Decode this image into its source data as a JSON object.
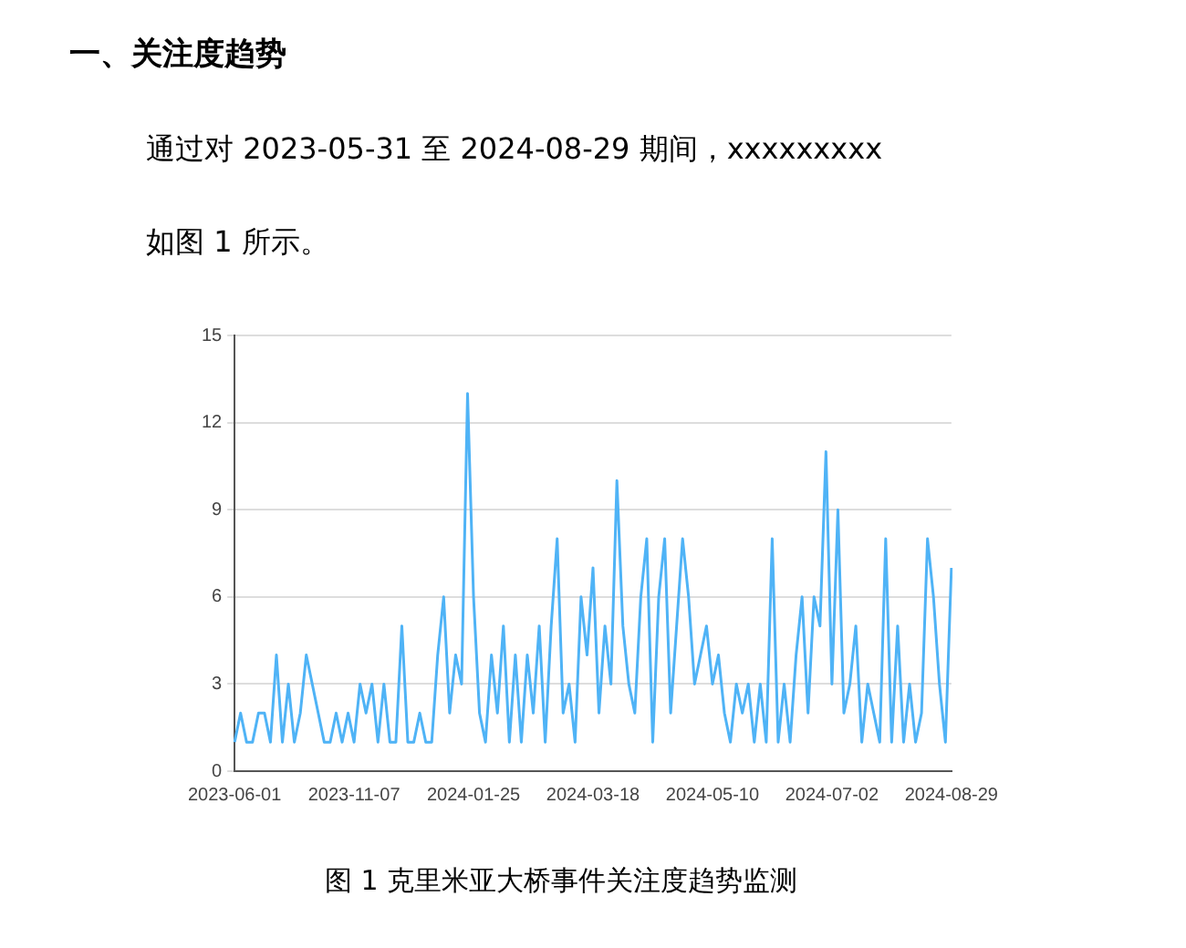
{
  "chart_data": {
    "type": "line",
    "title": "一、关注度趋势",
    "subtitle": "通过对 2023-05-31 至 2024-08-29 期间，xxxxxxxxx",
    "annotations": [
      "如图 1 所示。",
      "图 1  克里米亚大桥事件关注度趋势监测"
    ],
    "categories": [
      "2023-06-01",
      null,
      null,
      null,
      null,
      null,
      null,
      null,
      null,
      null,
      null,
      null,
      null,
      null,
      null,
      null,
      null,
      null,
      null,
      null,
      "2023-11-07",
      null,
      null,
      null,
      null,
      null,
      null,
      null,
      null,
      null,
      null,
      null,
      null,
      null,
      null,
      null,
      null,
      null,
      null,
      null,
      "2024-01-25",
      null,
      null,
      null,
      null,
      null,
      null,
      null,
      null,
      null,
      null,
      null,
      null,
      null,
      null,
      null,
      null,
      null,
      null,
      null,
      "2024-03-18",
      null,
      null,
      null,
      null,
      null,
      null,
      null,
      null,
      null,
      null,
      null,
      null,
      null,
      null,
      null,
      null,
      null,
      null,
      null,
      "2024-05-10",
      null,
      null,
      null,
      null,
      null,
      null,
      null,
      null,
      null,
      null,
      null,
      null,
      null,
      null,
      null,
      null,
      null,
      null,
      null,
      "2024-07-02",
      null,
      null,
      null,
      null,
      null,
      null,
      null,
      null,
      null,
      null,
      null,
      null,
      null,
      null,
      null,
      null,
      null,
      null,
      null,
      "2024-08-29"
    ],
    "series": [
      {
        "color": "#4fb3f6",
        "values": [
          1,
          2,
          1,
          1,
          2,
          2,
          1,
          4,
          1,
          3,
          1,
          2,
          4,
          3,
          2,
          1,
          1,
          2,
          1,
          2,
          1,
          3,
          2,
          3,
          1,
          3,
          1,
          1,
          5,
          1,
          1,
          2,
          1,
          1,
          4,
          6,
          2,
          4,
          3,
          13,
          6,
          2,
          1,
          4,
          2,
          5,
          1,
          4,
          1,
          4,
          2,
          5,
          1,
          5,
          8,
          2,
          3,
          1,
          6,
          4,
          7,
          2,
          5,
          3,
          10,
          5,
          3,
          2,
          6,
          8,
          1,
          6,
          8,
          2,
          5,
          8,
          6,
          3,
          4,
          5,
          3,
          4,
          2,
          1,
          3,
          2,
          3,
          1,
          3,
          1,
          8,
          1,
          3,
          1,
          4,
          6,
          2,
          6,
          5,
          11,
          3,
          9,
          2,
          3,
          5,
          1,
          3,
          2,
          1,
          8,
          1,
          5,
          1,
          3,
          1,
          2,
          8,
          6,
          3,
          1,
          7
        ]
      }
    ],
    "ylim": [
      0,
      15
    ],
    "yticks": [
      0,
      3,
      6,
      9,
      12,
      15
    ],
    "grid": "y",
    "legend": false,
    "line_style": "solid"
  }
}
